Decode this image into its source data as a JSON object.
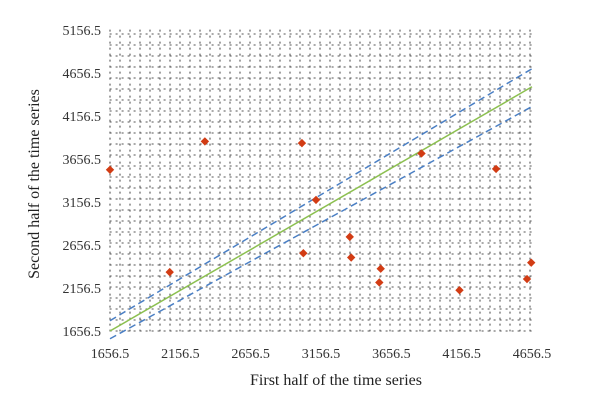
{
  "chart_data": {
    "type": "scatter",
    "title": "",
    "xlabel": "First half of the time series",
    "ylabel": "Second half of the time series",
    "xlim": [
      1656.5,
      4656.5
    ],
    "ylim": [
      1656.5,
      5156.5
    ],
    "x_ticks": [
      "1656.5",
      "2156.5",
      "2656.5",
      "3156.5",
      "3656.5",
      "4156.5",
      "4656.5"
    ],
    "y_ticks": [
      "1656.5",
      "2156.5",
      "2656.5",
      "3156.5",
      "3656.5",
      "4156.5",
      "4656.5",
      "5156.5"
    ],
    "grid": "dotted",
    "series": [
      {
        "marker": "diamond",
        "color": "#d23c14",
        "points": [
          {
            "x": 1656.5,
            "y": 3531
          },
          {
            "x": 2081,
            "y": 2341
          },
          {
            "x": 2331,
            "y": 3861
          },
          {
            "x": 3021,
            "y": 3841
          },
          {
            "x": 3031,
            "y": 2561
          },
          {
            "x": 3121,
            "y": 3181
          },
          {
            "x": 3361,
            "y": 2751
          },
          {
            "x": 3371,
            "y": 2511
          },
          {
            "x": 3571,
            "y": 2221
          },
          {
            "x": 3581,
            "y": 2381
          },
          {
            "x": 3871,
            "y": 3721
          },
          {
            "x": 4141,
            "y": 2131
          },
          {
            "x": 4401,
            "y": 3541
          },
          {
            "x": 4621,
            "y": 2261
          },
          {
            "x": 4651,
            "y": 2451
          }
        ]
      }
    ],
    "reference_lines": [
      {
        "style": "solid",
        "color": "#8cc050",
        "x": [
          1656.5,
          4656.5
        ],
        "y": [
          1656.5,
          4496.5
        ]
      },
      {
        "style": "dashed",
        "color": "#4a7fc4",
        "x": [
          1656.5,
          4656.5
        ],
        "y": [
          1776.5,
          4706.5
        ]
      },
      {
        "style": "dashed",
        "color": "#4a7fc4",
        "x": [
          1656.5,
          4656.5
        ],
        "y": [
          1566.5,
          4266.5
        ]
      }
    ]
  }
}
